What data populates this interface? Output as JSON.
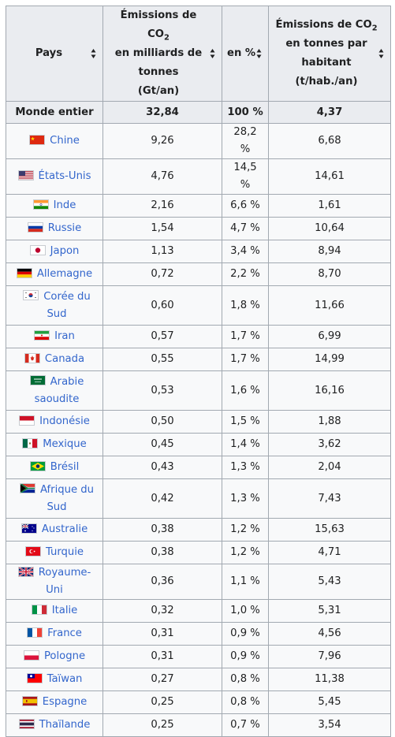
{
  "table": {
    "headers": {
      "pays": "Pays",
      "emissions_line1": "Émissions de",
      "emissions_co": "CO",
      "emissions_sub": "2",
      "emissions_line2": "en milliards de tonnes",
      "emissions_line3": "(Gt/an)",
      "percent": "en %",
      "hab_line1": "Émissions de CO",
      "hab_sub": "2",
      "hab_line2": "en tonnes par habitant",
      "hab_line3": "(t/hab./an)"
    },
    "world": {
      "label": "Monde entier",
      "emissions": "32,84",
      "percent": "100 %",
      "per_capita": "4,37"
    },
    "rows": [
      {
        "country": "Chine",
        "emissions": "9,26",
        "percent": "28,2 %",
        "per_capita": "6,68",
        "flag": "china-flag-icon"
      },
      {
        "country": "États-Unis",
        "emissions": "4,76",
        "percent": "14,5 %",
        "per_capita": "14,61",
        "flag": "usa-flag-icon"
      },
      {
        "country": "Inde",
        "emissions": "2,16",
        "percent": "6,6 %",
        "per_capita": "1,61",
        "flag": "india-flag-icon"
      },
      {
        "country": "Russie",
        "emissions": "1,54",
        "percent": "4,7 %",
        "per_capita": "10,64",
        "flag": "russia-flag-icon"
      },
      {
        "country": "Japon",
        "emissions": "1,13",
        "percent": "3,4 %",
        "per_capita": "8,94",
        "flag": "japan-flag-icon"
      },
      {
        "country": "Allemagne",
        "emissions": "0,72",
        "percent": "2,2 %",
        "per_capita": "8,70",
        "flag": "germany-flag-icon"
      },
      {
        "country": "Corée du Sud",
        "emissions": "0,60",
        "percent": "1,8 %",
        "per_capita": "11,66",
        "flag": "south-korea-flag-icon"
      },
      {
        "country": "Iran",
        "emissions": "0,57",
        "percent": "1,7 %",
        "per_capita": "6,99",
        "flag": "iran-flag-icon"
      },
      {
        "country": "Canada",
        "emissions": "0,55",
        "percent": "1,7 %",
        "per_capita": "14,99",
        "flag": "canada-flag-icon"
      },
      {
        "country": "Arabie saoudite",
        "emissions": "0,53",
        "percent": "1,6 %",
        "per_capita": "16,16",
        "flag": "saudi-arabia-flag-icon"
      },
      {
        "country": "Indonésie",
        "emissions": "0,50",
        "percent": "1,5 %",
        "per_capita": "1,88",
        "flag": "indonesia-flag-icon"
      },
      {
        "country": "Mexique",
        "emissions": "0,45",
        "percent": "1,4 %",
        "per_capita": "3,62",
        "flag": "mexico-flag-icon"
      },
      {
        "country": "Brésil",
        "emissions": "0,43",
        "percent": "1,3 %",
        "per_capita": "2,04",
        "flag": "brazil-flag-icon"
      },
      {
        "country": "Afrique du Sud",
        "emissions": "0,42",
        "percent": "1,3 %",
        "per_capita": "7,43",
        "flag": "south-africa-flag-icon"
      },
      {
        "country": "Australie",
        "emissions": "0,38",
        "percent": "1,2 %",
        "per_capita": "15,63",
        "flag": "australia-flag-icon"
      },
      {
        "country": "Turquie",
        "emissions": "0,38",
        "percent": "1,2 %",
        "per_capita": "4,71",
        "flag": "turkey-flag-icon"
      },
      {
        "country": "Royaume-Uni",
        "emissions": "0,36",
        "percent": "1,1 %",
        "per_capita": "5,43",
        "flag": "uk-flag-icon"
      },
      {
        "country": "Italie",
        "emissions": "0,32",
        "percent": "1,0 %",
        "per_capita": "5,31",
        "flag": "italy-flag-icon"
      },
      {
        "country": "France",
        "emissions": "0,31",
        "percent": "0,9 %",
        "per_capita": "4,56",
        "flag": "france-flag-icon"
      },
      {
        "country": "Pologne",
        "emissions": "0,31",
        "percent": "0,9 %",
        "per_capita": "7,96",
        "flag": "poland-flag-icon"
      },
      {
        "country": "Taïwan",
        "emissions": "0,27",
        "percent": "0,8 %",
        "per_capita": "11,38",
        "flag": "taiwan-flag-icon"
      },
      {
        "country": "Espagne",
        "emissions": "0,25",
        "percent": "0,8 %",
        "per_capita": "5,45",
        "flag": "spain-flag-icon"
      },
      {
        "country": "Thaïlande",
        "emissions": "0,25",
        "percent": "0,7 %",
        "per_capita": "3,54",
        "flag": "thailand-flag-icon"
      }
    ],
    "colors": {
      "link": "#3366cc",
      "header_bg": "#eaecf0",
      "cell_bg": "#f8f9fa",
      "border": "#a2a9b1"
    }
  }
}
